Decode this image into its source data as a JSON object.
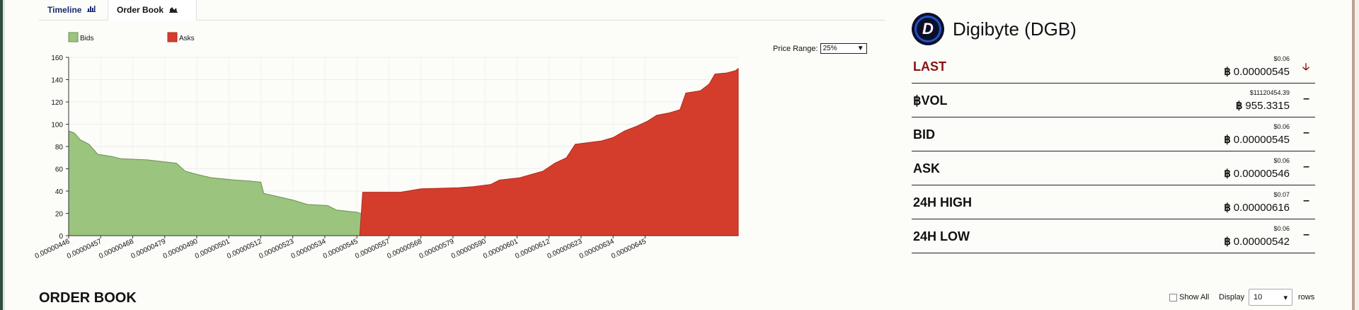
{
  "tabs": [
    {
      "label": "Timeline",
      "icon": "bar-chart-icon",
      "active": false
    },
    {
      "label": "Order Book",
      "icon": "area-chart-icon",
      "active": true
    }
  ],
  "price_range": {
    "label": "Price Range:",
    "value": "25%"
  },
  "chart_data": {
    "type": "area",
    "series": [
      {
        "name": "Bids",
        "color": "#9bc47f",
        "points": [
          [
            4.46e-06,
            94
          ],
          [
            4.48e-06,
            92
          ],
          [
            4.5e-06,
            86
          ],
          [
            4.53e-06,
            82
          ],
          [
            4.56e-06,
            73
          ],
          [
            4.61e-06,
            71
          ],
          [
            4.64e-06,
            69
          ],
          [
            4.73e-06,
            68
          ],
          [
            4.83e-06,
            65
          ],
          [
            4.86e-06,
            58
          ],
          [
            4.9e-06,
            55
          ],
          [
            4.95e-06,
            52
          ],
          [
            5.03e-06,
            50
          ],
          [
            5.08e-06,
            49
          ],
          [
            5.12e-06,
            48
          ],
          [
            5.13e-06,
            38
          ],
          [
            5.18e-06,
            35
          ],
          [
            5.23e-06,
            32
          ],
          [
            5.28e-06,
            28
          ],
          [
            5.35e-06,
            27
          ],
          [
            5.38e-06,
            23
          ],
          [
            5.45e-06,
            21
          ],
          [
            5.5e-06,
            17
          ],
          [
            5.55e-06,
            12
          ],
          [
            5.62e-06,
            10
          ],
          [
            5.68e-06,
            8
          ],
          [
            5.72e-06,
            2
          ],
          [
            5.74e-06,
            0
          ]
        ]
      },
      {
        "name": "Asks",
        "color": "#d43d2c",
        "points": [
          [
            5.46e-06,
            0
          ],
          [
            5.47e-06,
            39
          ],
          [
            5.6e-06,
            39
          ],
          [
            5.67e-06,
            42
          ],
          [
            5.8e-06,
            43
          ],
          [
            5.85e-06,
            44
          ],
          [
            5.91e-06,
            46
          ],
          [
            5.94e-06,
            50
          ],
          [
            6.01e-06,
            52
          ],
          [
            6.05e-06,
            55
          ],
          [
            6.09e-06,
            58
          ],
          [
            6.13e-06,
            65
          ],
          [
            6.17e-06,
            70
          ],
          [
            6.2e-06,
            82
          ],
          [
            6.29e-06,
            85
          ],
          [
            6.33e-06,
            88
          ],
          [
            6.37e-06,
            94
          ],
          [
            6.41e-06,
            98
          ],
          [
            6.45e-06,
            103
          ],
          [
            6.48e-06,
            108
          ],
          [
            6.52e-06,
            110
          ],
          [
            6.56e-06,
            113
          ],
          [
            6.58e-06,
            128
          ],
          [
            6.63e-06,
            130
          ],
          [
            6.66e-06,
            136
          ],
          [
            6.68e-06,
            145
          ],
          [
            6.72e-06,
            146
          ],
          [
            6.75e-06,
            148
          ],
          [
            6.76e-06,
            150
          ]
        ]
      }
    ],
    "x_ticks": [
      "0.00000446",
      "0.00000457",
      "0.00000468",
      "0.00000479",
      "0.00000490",
      "0.00000501",
      "0.00000512",
      "0.00000523",
      "0.00000534",
      "0.00000545",
      "0.00000557",
      "0.00000568",
      "0.00000579",
      "0.00000590",
      "0.00000601",
      "0.00000612",
      "0.00000623",
      "0.00000634",
      "0.00000645"
    ],
    "y_ticks": [
      0,
      20,
      40,
      60,
      80,
      100,
      120,
      140,
      160
    ],
    "ylim": [
      0,
      160
    ],
    "xlim": [
      4.46e-06,
      6.76e-06
    ],
    "legend": [
      "Bids",
      "Asks"
    ],
    "legend_placement": "top-left",
    "grid": true
  },
  "coin": {
    "name": "Digibyte (DGB)",
    "logo_letter": "D",
    "icon": "digibyte-logo-icon"
  },
  "stats": [
    {
      "label": "LAST",
      "usd": "$0.06",
      "btc": "0.00000545",
      "trend": "down-arrow",
      "trend_symbol": "🡣"
    },
    {
      "label": "฿VOL",
      "usd": "$11120454.39",
      "btc": "955.3315",
      "trend": "flat",
      "trend_symbol": "–"
    },
    {
      "label": "BID",
      "usd": "$0.06",
      "btc": "0.00000545",
      "trend": "flat",
      "trend_symbol": "–"
    },
    {
      "label": "ASK",
      "usd": "$0.06",
      "btc": "0.00000546",
      "trend": "flat",
      "trend_symbol": "–"
    },
    {
      "label": "24H HIGH",
      "usd": "$0.07",
      "btc": "0.00000616",
      "trend": "flat",
      "trend_symbol": "–"
    },
    {
      "label": "24H LOW",
      "usd": "$0.06",
      "btc": "0.00000542",
      "trend": "flat",
      "trend_symbol": "–"
    }
  ],
  "btc_symbol": "฿",
  "order_book": {
    "title": "ORDER BOOK",
    "show_all_label": "Show All",
    "display_label": "Display",
    "display_value": "10",
    "rows_label": "rows"
  }
}
